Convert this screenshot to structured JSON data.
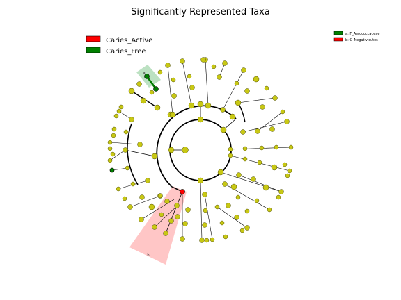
{
  "title": "Significantly Represented Taxa",
  "colors": {
    "active": "#ff0000",
    "free": "#008000",
    "node": "#c8c814",
    "active_highlight": "#ffb3b3",
    "free_highlight": "#9fd4a8"
  },
  "legend": [
    {
      "label": "Caries_Active",
      "color": "#ff0000"
    },
    {
      "label": "Caries_Free",
      "color": "#008000"
    }
  ],
  "clade_legend": [
    {
      "label": "a: F_Aerococcaceae",
      "color": "#008000"
    },
    {
      "label": "b: C_Negativicutes",
      "color": "#ff0000"
    }
  ],
  "clade_markers": [
    "a",
    "b"
  ]
}
